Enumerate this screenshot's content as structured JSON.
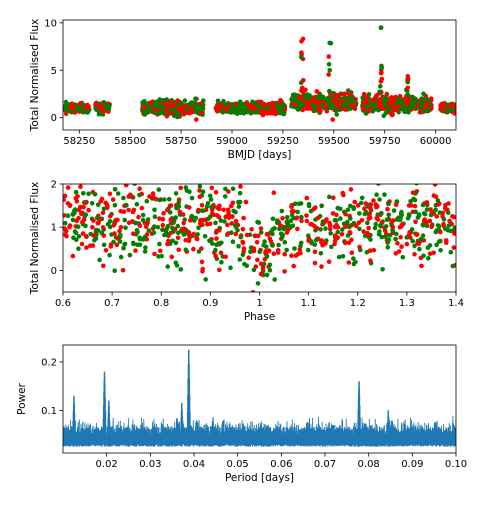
{
  "chart_data": [
    {
      "type": "scatter",
      "xlabel": "BMJD [days]",
      "ylabel": "Total Normalised Flux",
      "xlim": [
        58170,
        60100
      ],
      "ylim": [
        -1.3,
        10.3
      ],
      "xticks": [
        58250,
        58500,
        58750,
        59000,
        59250,
        59500,
        59750,
        60000
      ],
      "yticks": [
        0,
        5,
        10
      ],
      "grid": false,
      "colors": {
        "red": "#ff0000",
        "green": "#008000"
      },
      "segments": [
        {
          "x": [
            58180,
            58300
          ],
          "y_center": 1.0,
          "spread": 0.5
        },
        {
          "x": [
            58330,
            58400
          ],
          "y_center": 1.1,
          "spread": 0.6
        },
        {
          "x": [
            58560,
            58860
          ],
          "y_center": 1.0,
          "spread": 0.8
        },
        {
          "x": [
            58920,
            59260
          ],
          "y_center": 1.0,
          "spread": 0.6
        },
        {
          "x": [
            59290,
            59610
          ],
          "y_center": 1.6,
          "spread": 0.9
        },
        {
          "x": [
            59640,
            59980
          ],
          "y_center": 1.4,
          "spread": 0.9
        },
        {
          "x": [
            60020,
            60100
          ],
          "y_center": 1.0,
          "spread": 0.5
        }
      ],
      "flares": [
        {
          "x": 59345,
          "peak": 9.3,
          "width": 12
        },
        {
          "x": 59480,
          "peak": 8.6,
          "width": 12
        },
        {
          "x": 59730,
          "peak": 9.6,
          "width": 12
        },
        {
          "x": 59860,
          "peak": 4.8,
          "width": 10
        }
      ]
    },
    {
      "type": "scatter",
      "xlabel": "Phase",
      "ylabel": "Total Normalised Flux",
      "xlim": [
        0.6,
        1.4
      ],
      "ylim": [
        -0.5,
        2.0
      ],
      "xticks": [
        0.6,
        0.7,
        0.8,
        0.9,
        1.0,
        1.1,
        1.2,
        1.3,
        1.4
      ],
      "yticks": [
        0,
        1,
        2
      ],
      "grid": false,
      "colors": {
        "red": "#ff0000",
        "green": "#008000"
      },
      "baseline": 1.1,
      "eclipse": {
        "center": 1.0,
        "depth": 0.25,
        "half_width": 0.04
      }
    },
    {
      "type": "line",
      "xlabel": "Period [days]",
      "ylabel": "Power",
      "xlim": [
        0.01,
        0.1
      ],
      "ylim": [
        0.012,
        0.235
      ],
      "xticks": [
        0.02,
        0.03,
        0.04,
        0.05,
        0.06,
        0.07,
        0.08,
        0.09,
        0.1
      ],
      "xticklabels": [
        "0.02",
        "0.03",
        "0.04",
        "0.05",
        "0.06",
        "0.07",
        "0.08",
        "0.09",
        "0.10"
      ],
      "yticks": [
        0.1,
        0.2
      ],
      "grid": false,
      "color": "#1f77b4",
      "noise_floor": [
        0.025,
        0.07
      ],
      "peaks": [
        {
          "x": 0.0125,
          "y": 0.13
        },
        {
          "x": 0.0195,
          "y": 0.18
        },
        {
          "x": 0.0205,
          "y": 0.12
        },
        {
          "x": 0.0388,
          "y": 0.225
        },
        {
          "x": 0.0372,
          "y": 0.115
        },
        {
          "x": 0.0778,
          "y": 0.16
        },
        {
          "x": 0.0845,
          "y": 0.1
        }
      ]
    }
  ]
}
